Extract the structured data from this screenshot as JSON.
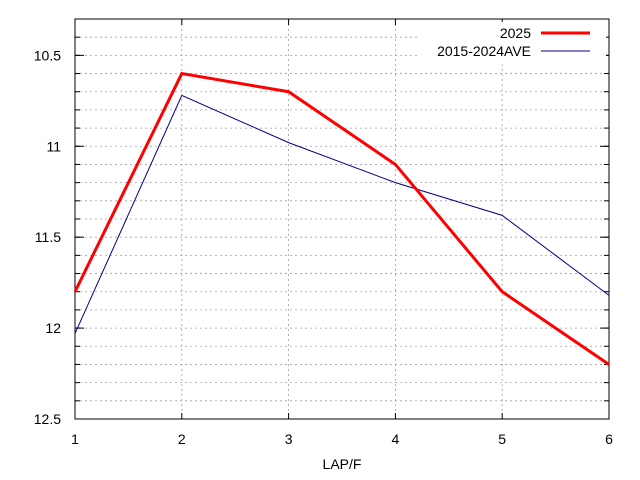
{
  "chart_data": {
    "type": "line",
    "xlabel": "LAP/F",
    "ylabel": "",
    "x": [
      1,
      2,
      3,
      4,
      5,
      6
    ],
    "xticks": [
      1,
      2,
      3,
      4,
      5,
      6
    ],
    "xlim": [
      1,
      6
    ],
    "ylim": [
      10.3,
      12.5
    ],
    "y_inverted": true,
    "yticks": [
      10.5,
      11,
      11.5,
      12,
      12.5
    ],
    "ytick_labels": [
      "10.5",
      "11",
      "11.5",
      "12",
      "12.5"
    ],
    "y_minor_step": 0.1,
    "grid": true,
    "legend_position": "top-right",
    "series": [
      {
        "name": "2025",
        "values": [
          11.8,
          10.6,
          10.7,
          11.1,
          11.8,
          12.2
        ],
        "color": "#ff0000",
        "style": "thick"
      },
      {
        "name": "2015-2024AVE",
        "values": [
          12.03,
          10.72,
          10.98,
          11.2,
          11.38,
          11.82
        ],
        "color": "#00008b",
        "style": "thin"
      }
    ]
  }
}
